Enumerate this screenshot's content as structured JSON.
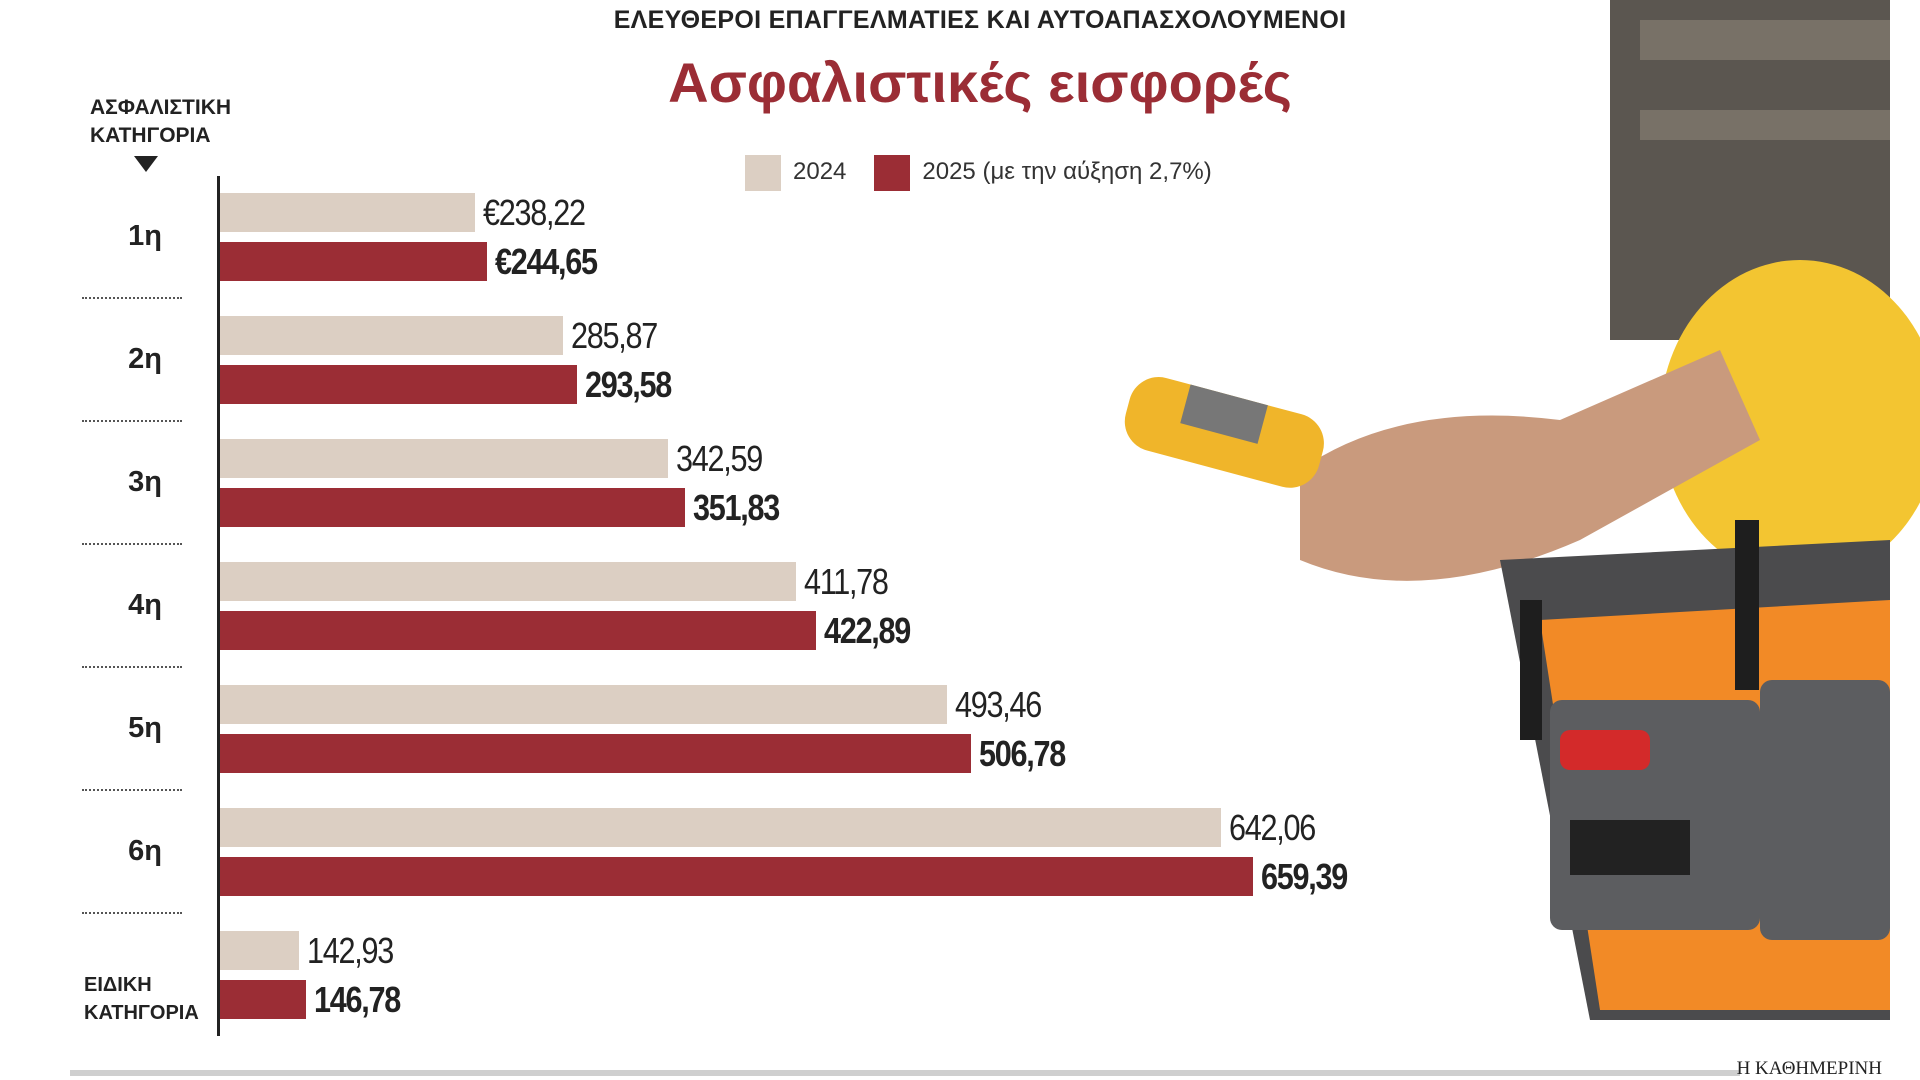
{
  "chart_data": {
    "type": "bar",
    "orientation": "horizontal",
    "supertitle": "ΕΛΕΥΘΕΡΟΙ ΕΠΑΓΓΕΛΜΑΤΙΕΣ ΚΑΙ ΑΥΤΟΑΠΑΣΧΟΛΟΥΜΕΝΟΙ",
    "title": "Ασφαλιστικές εισφορές",
    "y_label": "ΑΣΦΑΛΙΣΤΙΚΗ ΚΑΤΗΓΟΡΙΑ",
    "categories": [
      "1η",
      "2η",
      "3η",
      "4η",
      "5η",
      "6η",
      "ΕΙΔΙΚΗ ΚΑΤΗΓΟΡΙΑ"
    ],
    "series": [
      {
        "name": "2024",
        "color": "#dccfc3",
        "bold": false,
        "values": [
          238.22,
          285.87,
          342.59,
          411.78,
          493.46,
          642.06,
          142.93
        ],
        "value_labels": [
          "€238,22",
          "285,87",
          "342,59",
          "411,78",
          "493,46",
          "642,06",
          "142,93"
        ]
      },
      {
        "name": "2025 (με την αύξηση 2,7%)",
        "color": "#9b2d35",
        "bold": true,
        "values": [
          244.65,
          293.58,
          351.83,
          422.89,
          506.78,
          659.39,
          146.78
        ],
        "value_labels": [
          "€244,65",
          "293,58",
          "351,83",
          "422,89",
          "506,78",
          "659,39",
          "146,78"
        ]
      }
    ],
    "xlim": [
      100,
      700
    ],
    "source": "Η ΚΑΘΗΜΕΡΙΝΗ"
  }
}
